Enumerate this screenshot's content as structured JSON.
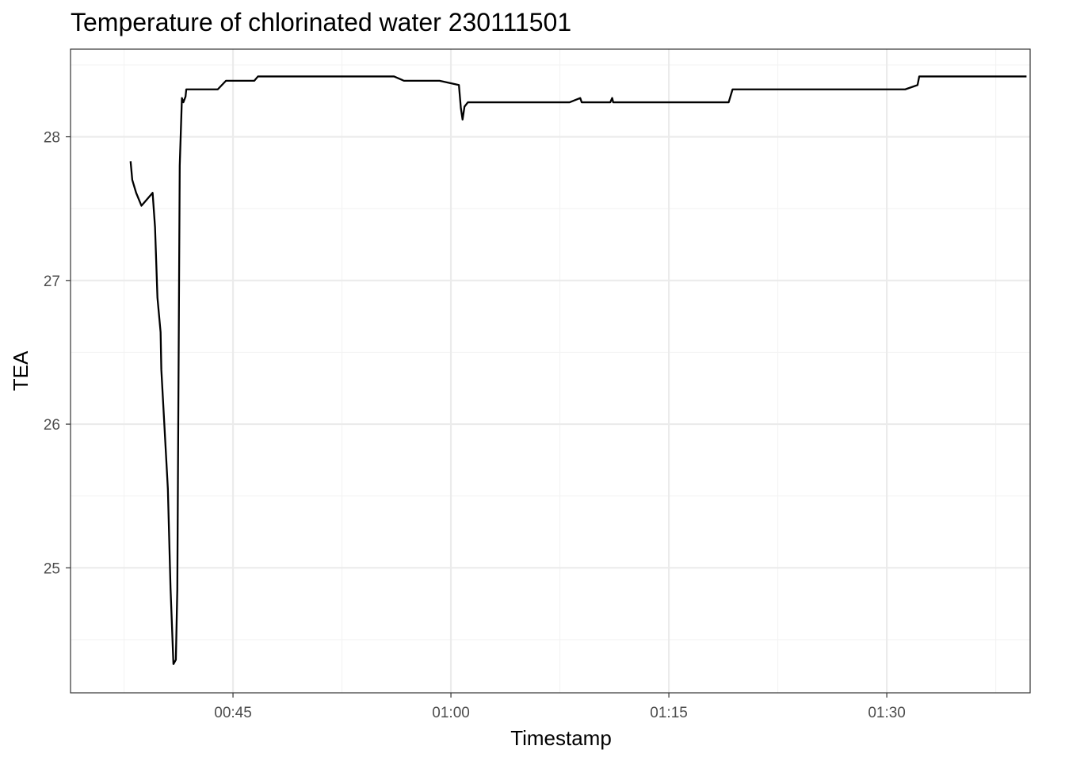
{
  "chart_data": {
    "type": "line",
    "title": "Temperature of chlorinated water 230111501",
    "xlabel": "Timestamp",
    "ylabel": "TEA",
    "x_unit": "minutes",
    "xlim": [
      "00:33:49",
      "01:39:52"
    ],
    "ylim": [
      24.13,
      28.61
    ],
    "x_ticks": [
      "00:45",
      "01:00",
      "01:15",
      "01:30"
    ],
    "y_ticks": [
      25,
      26,
      27,
      28
    ],
    "grid": true,
    "legend": "none",
    "colors": {
      "line": "#000000",
      "grid_major": "#ebebeb",
      "grid_minor": "#f3f3f3",
      "panel_border": "#333333",
      "background": "#ffffff"
    },
    "series": [
      {
        "points": [
          [
            "00:37:57",
            27.83
          ],
          [
            "00:38:04",
            27.7
          ],
          [
            "00:38:20",
            27.61
          ],
          [
            "00:38:42",
            27.52
          ],
          [
            "00:39:28",
            27.61
          ],
          [
            "00:39:38",
            27.37
          ],
          [
            "00:39:48",
            26.88
          ],
          [
            "00:40:01",
            26.64
          ],
          [
            "00:40:04",
            26.38
          ],
          [
            "00:40:31",
            25.55
          ],
          [
            "00:40:42",
            24.86
          ],
          [
            "00:40:54",
            24.33
          ],
          [
            "00:41:04",
            24.36
          ],
          [
            "00:41:10",
            24.85
          ],
          [
            "00:41:20",
            27.8
          ],
          [
            "00:41:29",
            28.27
          ],
          [
            "00:41:35",
            28.24
          ],
          [
            "00:41:44",
            28.28
          ],
          [
            "00:41:47",
            28.33
          ],
          [
            "00:43:57",
            28.33
          ],
          [
            "00:44:31",
            28.39
          ],
          [
            "00:46:28",
            28.39
          ],
          [
            "00:46:43",
            28.42
          ],
          [
            "00:56:05",
            28.42
          ],
          [
            "00:56:46",
            28.39
          ],
          [
            "00:59:13",
            28.39
          ],
          [
            "01:00:33",
            28.36
          ],
          [
            "01:00:41",
            28.2
          ],
          [
            "01:00:48",
            28.12
          ],
          [
            "01:00:56",
            28.21
          ],
          [
            "01:01:10",
            28.24
          ],
          [
            "01:08:10",
            28.24
          ],
          [
            "01:08:54",
            28.27
          ],
          [
            "01:09:00",
            28.24
          ],
          [
            "01:10:58",
            28.24
          ],
          [
            "01:11:06",
            28.27
          ],
          [
            "01:11:10",
            28.24
          ],
          [
            "01:19:07",
            28.24
          ],
          [
            "01:19:23",
            28.33
          ],
          [
            "01:31:16",
            28.33
          ],
          [
            "01:31:50",
            28.35
          ],
          [
            "01:32:07",
            28.36
          ],
          [
            "01:32:14",
            28.42
          ],
          [
            "01:39:37",
            28.42
          ]
        ]
      }
    ]
  }
}
